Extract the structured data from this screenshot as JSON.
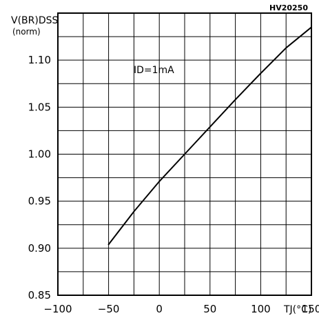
{
  "chart_data": {
    "type": "line",
    "code_label": "HV20250",
    "ylabel_line1": "V(BR)DSS",
    "ylabel_line2": "(norm)",
    "xlabel": "TJ(°C)",
    "annotation": "ID=1mA",
    "xlim": [
      -100,
      150
    ],
    "ylim": [
      0.85,
      1.15
    ],
    "x_ticks": [
      -100,
      -50,
      0,
      50,
      100,
      150
    ],
    "x_tick_labels": [
      "−100",
      "−50",
      "0",
      "50",
      "100",
      "150"
    ],
    "y_ticks": [
      0.85,
      0.9,
      0.95,
      1.0,
      1.05,
      1.1
    ],
    "y_tick_labels": [
      "0.85",
      "0.90",
      "0.95",
      "1.00",
      "1.05",
      "1.10"
    ],
    "grid": true,
    "series": [
      {
        "x": [
          -50,
          -25,
          0,
          25,
          50,
          75,
          100,
          125,
          150
        ],
        "y": [
          0.904,
          0.939,
          0.971,
          1.0,
          1.029,
          1.058,
          1.086,
          1.113,
          1.135
        ]
      }
    ]
  }
}
